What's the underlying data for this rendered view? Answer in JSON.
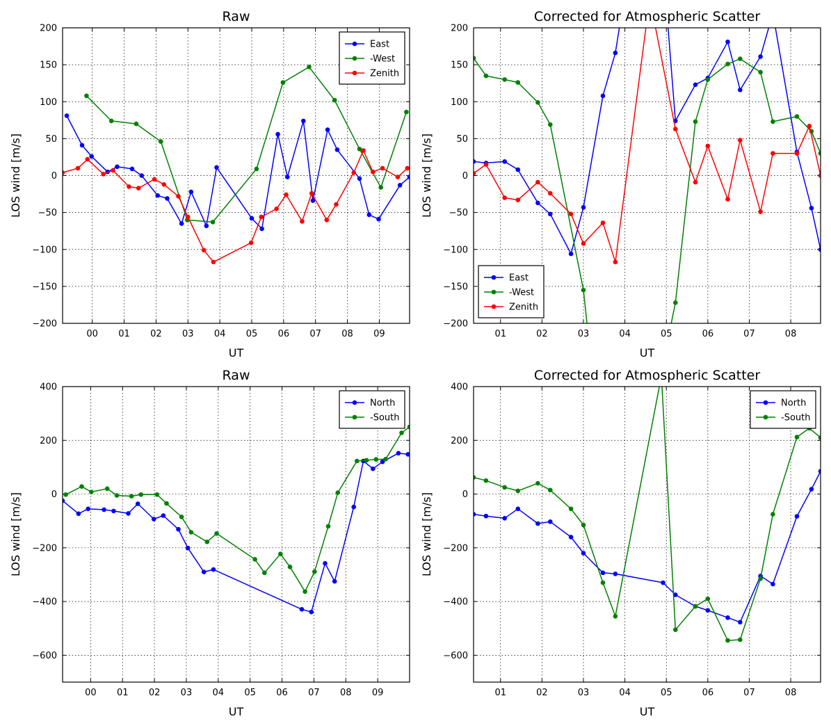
{
  "colors": {
    "blue": "#0000ff",
    "green": "#008000",
    "red": "#ff0000"
  },
  "chart_data": [
    {
      "type": "line",
      "title": "Raw",
      "xlabel": "UT",
      "ylabel": "LOS wind [m/s]",
      "xlim": [
        -0.93,
        9.95
      ],
      "ylim": [
        -200,
        200
      ],
      "xticks": [
        0,
        1,
        2,
        3,
        4,
        5,
        6,
        7,
        8,
        9
      ],
      "xticklabels": [
        "00",
        "01",
        "02",
        "03",
        "04",
        "05",
        "06",
        "07",
        "08",
        "09"
      ],
      "yticks": [
        -200,
        -150,
        -100,
        -50,
        0,
        50,
        100,
        150,
        200
      ],
      "yticklabels": [
        "−200",
        "−150",
        "−100",
        "−50",
        "0",
        "50",
        "100",
        "150",
        "200"
      ],
      "grid": true,
      "legend": "top-right",
      "series": [
        {
          "name": "East",
          "color": "#0000ff",
          "x": [
            -0.8,
            -0.32,
            -0.02,
            0.48,
            0.78,
            1.25,
            1.55,
            2.05,
            2.35,
            2.8,
            3.1,
            3.58,
            3.9,
            5.0,
            5.32,
            5.82,
            6.12,
            6.62,
            6.92,
            7.38,
            7.68,
            8.38,
            8.68,
            8.98,
            9.65,
            9.95
          ],
          "y": [
            81,
            41,
            26,
            5,
            12,
            9,
            0,
            -27,
            -31,
            -65,
            -22,
            -68,
            11,
            -58,
            -72,
            56,
            -2,
            74,
            -34,
            62,
            35,
            -4,
            -53,
            -59,
            -13,
            -2
          ]
        },
        {
          "name": "-West",
          "color": "#008000",
          "x": [
            -0.18,
            0.6,
            1.38,
            2.15,
            2.98,
            3.78,
            5.15,
            5.98,
            6.8,
            7.6,
            8.38,
            9.05,
            9.85
          ],
          "y": [
            108,
            74,
            70,
            46,
            -60,
            -63,
            9,
            126,
            147,
            102,
            36,
            -16,
            86
          ]
        },
        {
          "name": "Zenith",
          "color": "#ff0000",
          "x": [
            -0.93,
            -0.45,
            -0.15,
            0.35,
            0.65,
            1.15,
            1.45,
            1.95,
            2.25,
            2.7,
            3.0,
            3.5,
            3.8,
            4.98,
            5.3,
            5.78,
            6.08,
            6.58,
            6.88,
            7.35,
            7.65,
            8.2,
            8.5,
            8.8,
            9.1,
            9.58,
            9.88
          ],
          "y": [
            4,
            10,
            22,
            2,
            7,
            -15,
            -17,
            -5,
            -12,
            -28,
            -56,
            -101,
            -117,
            -91,
            -56,
            -45,
            -26,
            -62,
            -24,
            -60,
            -39,
            4,
            34,
            5,
            10,
            -2,
            10
          ]
        }
      ]
    },
    {
      "type": "line",
      "title": "Corrected for Atmospheric Scatter",
      "xlabel": "UT",
      "ylabel": "LOS wind [m/s]",
      "xlim": [
        0.35,
        8.72
      ],
      "ylim": [
        -200,
        200
      ],
      "xticks": [
        1,
        2,
        3,
        4,
        5,
        6,
        7,
        8
      ],
      "xticklabels": [
        "01",
        "02",
        "03",
        "04",
        "05",
        "06",
        "07",
        "08"
      ],
      "yticks": [
        -200,
        -150,
        -100,
        -50,
        0,
        50,
        100,
        150,
        200
      ],
      "yticklabels": [
        "−200",
        "−150",
        "−100",
        "−50",
        "0",
        "50",
        "100",
        "150",
        "200"
      ],
      "grid": true,
      "legend": "bottom-left",
      "series": [
        {
          "name": "East",
          "color": "#0000ff",
          "x": [
            0.35,
            0.65,
            1.1,
            1.42,
            1.9,
            2.2,
            2.7,
            3.0,
            3.47,
            3.77,
            3.98,
            4.9,
            5.22,
            5.7,
            6.0,
            6.48,
            6.78,
            7.27,
            7.57,
            8.15,
            8.5,
            8.72
          ],
          "y": [
            19,
            17,
            19,
            8,
            -37,
            -52,
            -106,
            -43,
            108,
            166,
            240,
            300,
            74,
            123,
            132,
            181,
            116,
            161,
            220,
            32,
            -44,
            -100
          ]
        },
        {
          "name": "-West",
          "color": "#008000",
          "x": [
            0.35,
            0.65,
            1.1,
            1.42,
            1.9,
            2.2,
            3.0,
            3.2,
            4.9,
            5.22,
            5.7,
            6.0,
            6.48,
            6.78,
            7.27,
            7.57,
            8.15,
            8.5,
            8.72
          ],
          "y": [
            159,
            135,
            130,
            126,
            99,
            69,
            -155,
            -260,
            -260,
            -172,
            73,
            130,
            151,
            158,
            140,
            73,
            80,
            60,
            30
          ]
        },
        {
          "name": "Zenith",
          "color": "#ff0000",
          "x": [
            0.35,
            0.65,
            1.1,
            1.42,
            1.9,
            2.2,
            2.7,
            3.0,
            3.47,
            3.77,
            4.6,
            5.22,
            5.7,
            6.0,
            6.48,
            6.78,
            7.27,
            7.57,
            8.15,
            8.45,
            8.72
          ],
          "y": [
            3,
            15,
            -30,
            -33,
            -9,
            -24,
            -52,
            -92,
            -64,
            -117,
            240,
            63,
            -9,
            40,
            -32,
            48,
            -49,
            30,
            30,
            67,
            0
          ]
        }
      ]
    },
    {
      "type": "line",
      "title": "Raw",
      "xlabel": "UT",
      "ylabel": "LOS wind [m/s]",
      "xlim": [
        -0.88,
        10.0
      ],
      "ylim": [
        -700,
        400
      ],
      "xticks": [
        0,
        1,
        2,
        3,
        4,
        5,
        6,
        7,
        8,
        9
      ],
      "xticklabels": [
        "00",
        "01",
        "02",
        "03",
        "04",
        "05",
        "06",
        "07",
        "08",
        "09"
      ],
      "yticks": [
        -600,
        -400,
        -200,
        0,
        200,
        400
      ],
      "yticklabels": [
        "−600",
        "−400",
        "−200",
        "0",
        "200",
        "400"
      ],
      "grid": true,
      "legend": "top-right",
      "series": [
        {
          "name": "North",
          "color": "#0000ff",
          "x": [
            -0.88,
            -0.38,
            -0.08,
            0.42,
            0.72,
            1.18,
            1.48,
            1.98,
            2.28,
            2.75,
            3.05,
            3.55,
            3.85,
            6.62,
            6.92,
            7.35,
            7.65,
            8.25,
            8.55,
            8.85,
            9.15,
            9.65,
            9.95
          ],
          "y": [
            -25,
            -73,
            -55,
            -58,
            -63,
            -72,
            -36,
            -93,
            -80,
            -131,
            -201,
            -290,
            -281,
            -429,
            -439,
            -258,
            -325,
            -48,
            123,
            94,
            120,
            152,
            148
          ]
        },
        {
          "name": "-South",
          "color": "#008000",
          "x": [
            -0.78,
            -0.28,
            0.02,
            0.52,
            0.82,
            1.28,
            1.58,
            2.08,
            2.38,
            2.85,
            3.15,
            3.65,
            3.95,
            5.15,
            5.45,
            5.95,
            6.25,
            6.72,
            7.02,
            7.45,
            7.75,
            8.35,
            8.65,
            8.95,
            9.25,
            9.75,
            10.0
          ],
          "y": [
            -2,
            28,
            8,
            20,
            -5,
            -8,
            -2,
            -2,
            -35,
            -85,
            -142,
            -178,
            -147,
            -243,
            -293,
            -223,
            -271,
            -363,
            -289,
            -120,
            5,
            123,
            126,
            129,
            130,
            228,
            250
          ]
        }
      ]
    },
    {
      "type": "line",
      "title": "Corrected for Atmospheric Scatter",
      "xlabel": "UT",
      "ylabel": "LOS wind [m/s]",
      "xlim": [
        0.35,
        8.72
      ],
      "ylim": [
        -700,
        400
      ],
      "xticks": [
        1,
        2,
        3,
        4,
        5,
        6,
        7,
        8
      ],
      "xticklabels": [
        "01",
        "02",
        "03",
        "04",
        "05",
        "06",
        "07",
        "08"
      ],
      "yticks": [
        -600,
        -400,
        -200,
        0,
        200,
        400
      ],
      "yticklabels": [
        "−600",
        "−400",
        "−200",
        "0",
        "200",
        "400"
      ],
      "grid": true,
      "legend": "top-right",
      "series": [
        {
          "name": "North",
          "color": "#0000ff",
          "x": [
            0.35,
            0.65,
            1.1,
            1.42,
            1.9,
            2.2,
            2.7,
            3.0,
            3.47,
            3.77,
            4.92,
            5.22,
            5.7,
            6.0,
            6.48,
            6.78,
            7.27,
            7.57,
            8.15,
            8.5,
            8.72
          ],
          "y": [
            -75,
            -82,
            -90,
            -55,
            -110,
            -103,
            -160,
            -220,
            -293,
            -297,
            -330,
            -375,
            -418,
            -433,
            -460,
            -477,
            -305,
            -335,
            -83,
            18,
            85
          ]
        },
        {
          "name": "-South",
          "color": "#008000",
          "x": [
            0.35,
            0.65,
            1.1,
            1.42,
            1.9,
            2.2,
            2.7,
            3.0,
            3.47,
            3.77,
            4.88,
            5.22,
            5.7,
            6.0,
            6.48,
            6.78,
            7.27,
            7.57,
            8.15,
            8.45,
            8.72
          ],
          "y": [
            62,
            50,
            25,
            12,
            40,
            15,
            -55,
            -115,
            -330,
            -455,
            440,
            -505,
            -418,
            -390,
            -545,
            -542,
            -315,
            -75,
            212,
            245,
            210
          ]
        }
      ]
    }
  ]
}
